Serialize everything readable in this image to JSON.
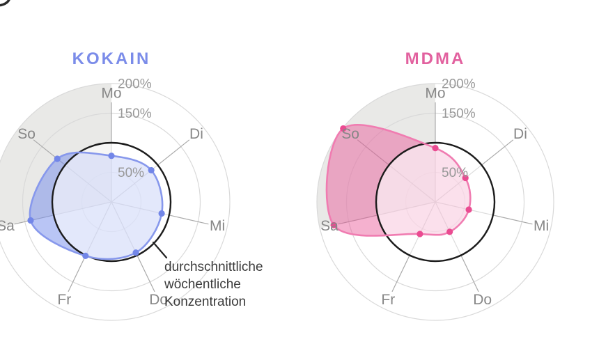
{
  "chart_data": {
    "type": "radar",
    "categories": [
      "Mo",
      "Di",
      "Mi",
      "Do",
      "Fr",
      "Sa",
      "So"
    ],
    "series": [
      {
        "name": "KOKAIN",
        "values": [
          78,
          86,
          87,
          95,
          101,
          140,
          117
        ]
      },
      {
        "name": "MDMA",
        "values": [
          91,
          65,
          58,
          56,
          60,
          176,
          199
        ]
      }
    ],
    "value_unit": "%",
    "radial_axis": {
      "ticks": [
        200,
        150,
        50
      ],
      "tick_labels": [
        "200%",
        "150%",
        "50%"
      ],
      "max": 200,
      "reference_value": 100
    },
    "highlighted_sector": {
      "from_category": "Sa",
      "to_category": "Mo"
    },
    "annotation": "durchschnittliche wöchentliche Konzentration",
    "legend_position": "none",
    "grid": true
  },
  "figure": {
    "annotation": "durchschnittliche\nwöchentliche\nKonzentration"
  },
  "styles": {
    "series": [
      {
        "title_color": "#7b8ce9",
        "line": "#8798ec",
        "dot": "#7286e8",
        "fill": "#738ceb",
        "fill_opacity": 0.5
      },
      {
        "title_color": "#e2619f",
        "line": "#f07cb1",
        "dot": "#ea4b91",
        "fill": "#e85295",
        "fill_opacity": 0.45
      }
    ],
    "grid_ring": "#d9d9d9",
    "spoke": "#a9a9a9",
    "reference_circle": "#1c1c1c",
    "weekend_fill": "#e9e9e7",
    "day_label": "#878787",
    "tick_label": "#989898",
    "annotation_color": "#3a3a3a",
    "leader_line": "#222222"
  }
}
